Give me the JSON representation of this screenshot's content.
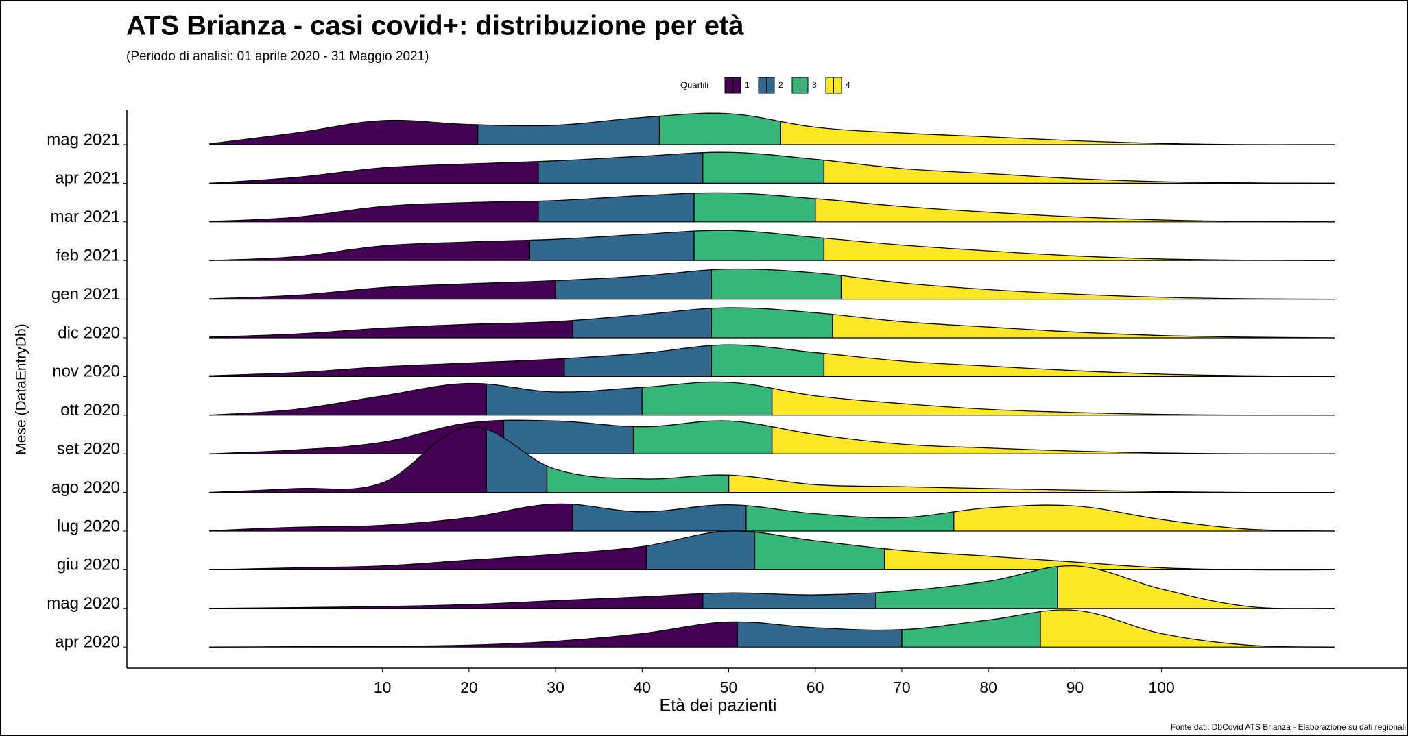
{
  "chart_data": {
    "type": "ridgeline",
    "title": "ATS Brianza - casi covid+: distribuzione per età",
    "subtitle": "(Periodo di analisi: 01 aprile 2020 - 31 Maggio 2021)",
    "x_label": "Età dei pazienti",
    "y_label": "Mese (DataEntryDb)",
    "caption": "Fonte dati: DbCovid ATS Brianza - Elaborazione su dati regionali",
    "legend": {
      "title": "Quartili",
      "labels": [
        "1",
        "2",
        "3",
        "4"
      ],
      "colors": [
        "#440154",
        "#31688e",
        "#35b779",
        "#fde725"
      ]
    },
    "xlim": [
      -20,
      128
    ],
    "xticks": [
      10,
      20,
      30,
      40,
      50,
      60,
      70,
      80,
      90,
      100
    ],
    "x": [
      -10,
      0,
      10,
      20,
      30,
      40,
      50,
      60,
      70,
      80,
      90,
      100,
      110,
      120
    ],
    "series": [
      {
        "name": "mag 2021",
        "quartiles": [
          21,
          42,
          56
        ],
        "density": [
          0.02,
          0.3,
          0.62,
          0.52,
          0.5,
          0.7,
          0.8,
          0.45,
          0.3,
          0.2,
          0.1,
          0.03,
          0,
          0
        ]
      },
      {
        "name": "apr 2021",
        "quartiles": [
          28,
          47,
          61
        ],
        "density": [
          0,
          0.15,
          0.4,
          0.5,
          0.58,
          0.7,
          0.8,
          0.62,
          0.38,
          0.25,
          0.12,
          0.04,
          0.01,
          0
        ]
      },
      {
        "name": "mar 2021",
        "quartiles": [
          28,
          46,
          60
        ],
        "density": [
          0.01,
          0.12,
          0.4,
          0.5,
          0.55,
          0.68,
          0.75,
          0.6,
          0.4,
          0.25,
          0.13,
          0.05,
          0.01,
          0
        ]
      },
      {
        "name": "feb 2021",
        "quartiles": [
          27,
          46,
          61
        ],
        "density": [
          0,
          0.1,
          0.38,
          0.48,
          0.55,
          0.68,
          0.78,
          0.6,
          0.4,
          0.25,
          0.12,
          0.04,
          0.01,
          0
        ]
      },
      {
        "name": "gen 2021",
        "quartiles": [
          30,
          48,
          63
        ],
        "density": [
          0.01,
          0.1,
          0.3,
          0.4,
          0.48,
          0.6,
          0.78,
          0.68,
          0.42,
          0.25,
          0.13,
          0.05,
          0.01,
          0
        ]
      },
      {
        "name": "dic 2020",
        "quartiles": [
          32,
          48,
          62
        ],
        "density": [
          0.02,
          0.1,
          0.25,
          0.35,
          0.42,
          0.6,
          0.78,
          0.65,
          0.42,
          0.28,
          0.15,
          0.06,
          0.02,
          0
        ]
      },
      {
        "name": "nov 2020",
        "quartiles": [
          31,
          48,
          61
        ],
        "density": [
          0.02,
          0.1,
          0.25,
          0.35,
          0.45,
          0.6,
          0.82,
          0.62,
          0.4,
          0.27,
          0.15,
          0.06,
          0.02,
          0
        ]
      },
      {
        "name": "ott 2020",
        "quartiles": [
          22,
          40,
          55
        ],
        "density": [
          0,
          0.15,
          0.5,
          0.82,
          0.6,
          0.72,
          0.85,
          0.5,
          0.3,
          0.15,
          0.07,
          0.02,
          0,
          0
        ]
      },
      {
        "name": "set 2020",
        "quartiles": [
          24,
          39,
          55
        ],
        "density": [
          0,
          0.1,
          0.3,
          0.8,
          0.85,
          0.7,
          0.85,
          0.5,
          0.25,
          0.15,
          0.07,
          0.02,
          0,
          0
        ]
      },
      {
        "name": "ago 2020",
        "quartiles": [
          22,
          29,
          50
        ],
        "density": [
          0,
          0.1,
          0.25,
          1.7,
          0.6,
          0.35,
          0.45,
          0.2,
          0.15,
          0.1,
          0.06,
          0.02,
          0,
          0
        ]
      },
      {
        "name": "lug 2020",
        "quartiles": [
          32,
          52,
          76
        ],
        "density": [
          0.01,
          0.1,
          0.15,
          0.35,
          0.7,
          0.5,
          0.68,
          0.45,
          0.35,
          0.6,
          0.65,
          0.3,
          0.05,
          0
        ]
      },
      {
        "name": "giu 2020",
        "quartiles": [
          40.5,
          53,
          68
        ],
        "density": [
          0,
          0.05,
          0.1,
          0.25,
          0.4,
          0.6,
          1.0,
          0.75,
          0.5,
          0.35,
          0.2,
          0.05,
          0,
          0
        ]
      },
      {
        "name": "mag 2020",
        "quartiles": [
          47,
          67,
          88
        ],
        "density": [
          0,
          0.02,
          0.05,
          0.1,
          0.2,
          0.3,
          0.4,
          0.35,
          0.45,
          0.7,
          1.1,
          0.5,
          0.05,
          0
        ]
      },
      {
        "name": "apr 2020",
        "quartiles": [
          51,
          70,
          86
        ],
        "density": [
          0,
          0.01,
          0.02,
          0.05,
          0.15,
          0.35,
          0.65,
          0.5,
          0.45,
          0.7,
          0.95,
          0.35,
          0.05,
          0
        ]
      }
    ]
  }
}
